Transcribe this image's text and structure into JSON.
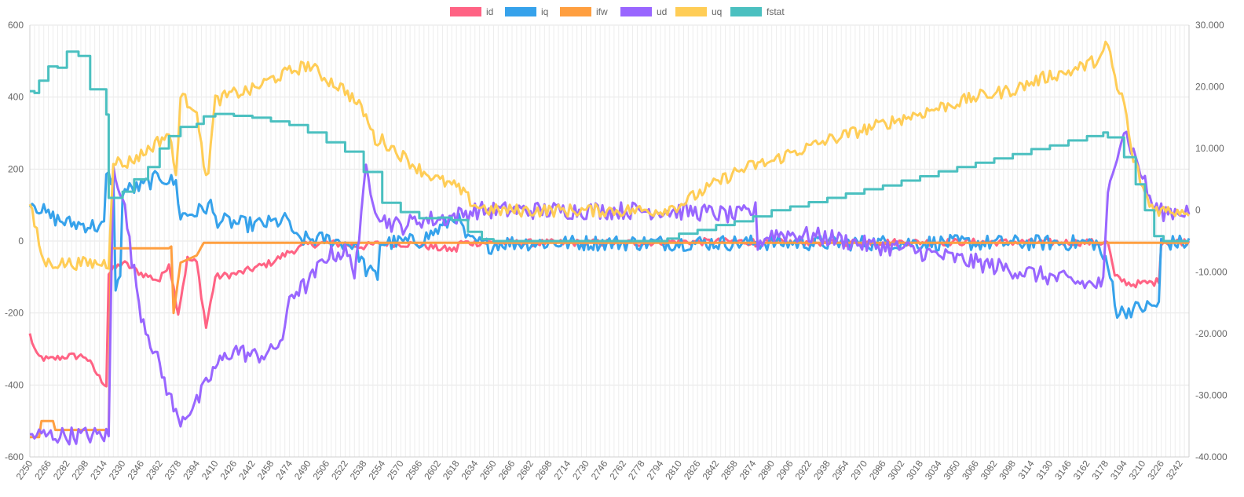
{
  "chart_data": {
    "type": "line",
    "x_start": 2250,
    "x_end": 3250,
    "x_ticks": [
      2250,
      2266,
      2282,
      2298,
      2314,
      2330,
      2346,
      2362,
      2378,
      2394,
      2410,
      2426,
      2442,
      2458,
      2474,
      2490,
      2506,
      2522,
      2538,
      2554,
      2570,
      2586,
      2602,
      2618,
      2634,
      2650,
      2666,
      2682,
      2698,
      2714,
      2730,
      2746,
      2762,
      2778,
      2794,
      2810,
      2826,
      2842,
      2858,
      2874,
      2890,
      2906,
      2922,
      2938,
      2954,
      2970,
      2986,
      3002,
      3018,
      3034,
      3050,
      3066,
      3082,
      3098,
      3114,
      3130,
      3146,
      3162,
      3178,
      3194,
      3210,
      3226,
      3242
    ],
    "y_left": {
      "min": -600,
      "max": 600,
      "ticks": [
        "600",
        "400",
        "200",
        "0",
        "-200",
        "-400",
        "-600"
      ]
    },
    "y_right": {
      "min": -40000,
      "max": 30000,
      "ticks": [
        "30.000",
        "20.000",
        "10.000",
        "0",
        "-10.000",
        "-20.000",
        "-30.000",
        "-40.000"
      ]
    },
    "grid": true,
    "legend_position": "top",
    "series": [
      {
        "name": "id",
        "color": "#ff6384",
        "axis": "left",
        "noise": 10,
        "points": [
          [
            2250,
            -260
          ],
          [
            2256,
            -320
          ],
          [
            2266,
            -330
          ],
          [
            2282,
            -320
          ],
          [
            2298,
            -320
          ],
          [
            2310,
            -380
          ],
          [
            2316,
            -400
          ],
          [
            2318,
            -90
          ],
          [
            2330,
            -60
          ],
          [
            2346,
            -90
          ],
          [
            2362,
            -110
          ],
          [
            2370,
            -60
          ],
          [
            2378,
            -200
          ],
          [
            2386,
            -50
          ],
          [
            2394,
            -60
          ],
          [
            2402,
            -240
          ],
          [
            2410,
            -100
          ],
          [
            2430,
            -90
          ],
          [
            2458,
            -60
          ],
          [
            2474,
            -30
          ],
          [
            2490,
            -10
          ],
          [
            2506,
            -5
          ],
          [
            2538,
            -15
          ],
          [
            2554,
            -5
          ],
          [
            2586,
            -10
          ],
          [
            2602,
            -20
          ],
          [
            2618,
            -25
          ],
          [
            2620,
            -5
          ],
          [
            2650,
            -5
          ],
          [
            2778,
            -5
          ],
          [
            2794,
            -2
          ],
          [
            2874,
            -2
          ],
          [
            2876,
            -15
          ],
          [
            2880,
            -5
          ],
          [
            2900,
            -4
          ],
          [
            2960,
            -4
          ],
          [
            3000,
            -3
          ],
          [
            3100,
            -3
          ],
          [
            3180,
            -4
          ],
          [
            3186,
            -100
          ],
          [
            3200,
            -120
          ],
          [
            3220,
            -115
          ],
          [
            3224,
            -110
          ],
          [
            3226,
            -2
          ],
          [
            3250,
            -2
          ]
        ]
      },
      {
        "name": "iq",
        "color": "#36a2eb",
        "axis": "left",
        "noise": 22,
        "points": [
          [
            2250,
            115
          ],
          [
            2266,
            70
          ],
          [
            2282,
            50
          ],
          [
            2298,
            45
          ],
          [
            2310,
            40
          ],
          [
            2314,
            40
          ],
          [
            2316,
            180
          ],
          [
            2322,
            170
          ],
          [
            2324,
            -120
          ],
          [
            2328,
            -110
          ],
          [
            2330,
            140
          ],
          [
            2346,
            150
          ],
          [
            2362,
            180
          ],
          [
            2376,
            160
          ],
          [
            2380,
            70
          ],
          [
            2394,
            80
          ],
          [
            2406,
            100
          ],
          [
            2410,
            60
          ],
          [
            2426,
            50
          ],
          [
            2442,
            45
          ],
          [
            2458,
            50
          ],
          [
            2474,
            60
          ],
          [
            2478,
            5
          ],
          [
            2506,
            5
          ],
          [
            2530,
            -10
          ],
          [
            2540,
            -80
          ],
          [
            2550,
            -100
          ],
          [
            2552,
            -5
          ],
          [
            2560,
            -5
          ],
          [
            2586,
            0
          ],
          [
            2602,
            30
          ],
          [
            2618,
            70
          ],
          [
            2628,
            0
          ],
          [
            2650,
            -15
          ],
          [
            2652,
            -5
          ],
          [
            2876,
            -5
          ],
          [
            3170,
            -5
          ],
          [
            3178,
            -60
          ],
          [
            3184,
            -120
          ],
          [
            3188,
            -200
          ],
          [
            3200,
            -190
          ],
          [
            3220,
            -180
          ],
          [
            3224,
            -175
          ],
          [
            3226,
            -5
          ],
          [
            3250,
            -5
          ]
        ]
      },
      {
        "name": "ifw",
        "color": "#ff9f40",
        "axis": "left",
        "noise": 0,
        "points": [
          [
            2250,
            -545
          ],
          [
            2258,
            -545
          ],
          [
            2260,
            -500
          ],
          [
            2270,
            -500
          ],
          [
            2272,
            -525
          ],
          [
            2318,
            -525
          ],
          [
            2320,
            -20
          ],
          [
            2370,
            -20
          ],
          [
            2372,
            -15
          ],
          [
            2374,
            -200
          ],
          [
            2380,
            -60
          ],
          [
            2394,
            -40
          ],
          [
            2400,
            -5
          ],
          [
            3250,
            -5
          ]
        ]
      },
      {
        "name": "ud",
        "color": "#9966ff",
        "axis": "left",
        "noise": 25,
        "points": [
          [
            2250,
            -540
          ],
          [
            2258,
            -540
          ],
          [
            2300,
            -540
          ],
          [
            2318,
            -540
          ],
          [
            2322,
            200
          ],
          [
            2330,
            130
          ],
          [
            2338,
            -50
          ],
          [
            2346,
            -200
          ],
          [
            2362,
            -350
          ],
          [
            2378,
            -500
          ],
          [
            2394,
            -450
          ],
          [
            2410,
            -350
          ],
          [
            2426,
            -300
          ],
          [
            2442,
            -320
          ],
          [
            2458,
            -310
          ],
          [
            2470,
            -260
          ],
          [
            2474,
            -150
          ],
          [
            2490,
            -120
          ],
          [
            2506,
            -40
          ],
          [
            2522,
            -30
          ],
          [
            2530,
            -80
          ],
          [
            2536,
            60
          ],
          [
            2540,
            200
          ],
          [
            2548,
            100
          ],
          [
            2554,
            60
          ],
          [
            2570,
            40
          ],
          [
            2586,
            60
          ],
          [
            2602,
            60
          ],
          [
            2618,
            70
          ],
          [
            2634,
            85
          ],
          [
            2650,
            85
          ],
          [
            2700,
            85
          ],
          [
            2778,
            85
          ],
          [
            2794,
            85
          ],
          [
            2830,
            80
          ],
          [
            2860,
            70
          ],
          [
            2876,
            85
          ],
          [
            2878,
            -5
          ],
          [
            2890,
            20
          ],
          [
            2906,
            20
          ],
          [
            2938,
            10
          ],
          [
            2970,
            -10
          ],
          [
            3002,
            -20
          ],
          [
            3034,
            -40
          ],
          [
            3066,
            -60
          ],
          [
            3098,
            -80
          ],
          [
            3130,
            -100
          ],
          [
            3162,
            -120
          ],
          [
            3176,
            -120
          ],
          [
            3180,
            120
          ],
          [
            3186,
            230
          ],
          [
            3194,
            310
          ],
          [
            3210,
            180
          ],
          [
            3218,
            100
          ],
          [
            3226,
            80
          ],
          [
            3250,
            85
          ]
        ]
      },
      {
        "name": "uq",
        "color": "#ffcd56",
        "axis": "left",
        "noise": 18,
        "points": [
          [
            2250,
            100
          ],
          [
            2256,
            20
          ],
          [
            2262,
            -60
          ],
          [
            2280,
            -62
          ],
          [
            2318,
            -62
          ],
          [
            2322,
            230
          ],
          [
            2330,
            210
          ],
          [
            2346,
            240
          ],
          [
            2362,
            280
          ],
          [
            2370,
            300
          ],
          [
            2376,
            180
          ],
          [
            2380,
            400
          ],
          [
            2394,
            370
          ],
          [
            2400,
            200
          ],
          [
            2404,
            200
          ],
          [
            2410,
            390
          ],
          [
            2426,
            410
          ],
          [
            2442,
            420
          ],
          [
            2458,
            450
          ],
          [
            2474,
            470
          ],
          [
            2490,
            490
          ],
          [
            2506,
            450
          ],
          [
            2522,
            420
          ],
          [
            2538,
            360
          ],
          [
            2548,
            280
          ],
          [
            2554,
            280
          ],
          [
            2570,
            240
          ],
          [
            2586,
            200
          ],
          [
            2602,
            170
          ],
          [
            2618,
            150
          ],
          [
            2634,
            100
          ],
          [
            2648,
            85
          ],
          [
            2778,
            85
          ],
          [
            2794,
            85
          ],
          [
            2810,
            100
          ],
          [
            2826,
            130
          ],
          [
            2842,
            160
          ],
          [
            2858,
            190
          ],
          [
            2874,
            210
          ],
          [
            2890,
            220
          ],
          [
            2906,
            245
          ],
          [
            2922,
            260
          ],
          [
            2938,
            280
          ],
          [
            2954,
            295
          ],
          [
            2970,
            310
          ],
          [
            2986,
            325
          ],
          [
            3002,
            340
          ],
          [
            3018,
            355
          ],
          [
            3034,
            370
          ],
          [
            3050,
            385
          ],
          [
            3066,
            400
          ],
          [
            3082,
            410
          ],
          [
            3098,
            420
          ],
          [
            3114,
            440
          ],
          [
            3130,
            460
          ],
          [
            3146,
            470
          ],
          [
            3162,
            490
          ],
          [
            3174,
            510
          ],
          [
            3178,
            540
          ],
          [
            3182,
            520
          ],
          [
            3188,
            420
          ],
          [
            3194,
            390
          ],
          [
            3200,
            250
          ],
          [
            3210,
            150
          ],
          [
            3216,
            100
          ],
          [
            3226,
            85
          ],
          [
            3250,
            85
          ]
        ]
      },
      {
        "name": "fstat",
        "color": "#4bc0c0",
        "axis": "right",
        "noise": 0,
        "step": true,
        "points": [
          [
            2250,
            19300
          ],
          [
            2254,
            19000
          ],
          [
            2258,
            21000
          ],
          [
            2266,
            23300
          ],
          [
            2274,
            23100
          ],
          [
            2282,
            25700
          ],
          [
            2292,
            25000
          ],
          [
            2302,
            19600
          ],
          [
            2316,
            15500
          ],
          [
            2318,
            2000
          ],
          [
            2330,
            3000
          ],
          [
            2340,
            5000
          ],
          [
            2352,
            7000
          ],
          [
            2362,
            10000
          ],
          [
            2370,
            12000
          ],
          [
            2380,
            13500
          ],
          [
            2394,
            14000
          ],
          [
            2400,
            15200
          ],
          [
            2410,
            15600
          ],
          [
            2426,
            15300
          ],
          [
            2442,
            15000
          ],
          [
            2458,
            14400
          ],
          [
            2474,
            13800
          ],
          [
            2490,
            12600
          ],
          [
            2506,
            11000
          ],
          [
            2522,
            9500
          ],
          [
            2538,
            6200
          ],
          [
            2554,
            1200
          ],
          [
            2570,
            -300
          ],
          [
            2586,
            -1300
          ],
          [
            2602,
            -1200
          ],
          [
            2614,
            -1600
          ],
          [
            2628,
            -3500
          ],
          [
            2640,
            -4700
          ],
          [
            2650,
            -5000
          ],
          [
            2794,
            -5000
          ],
          [
            2800,
            -4600
          ],
          [
            2810,
            -3800
          ],
          [
            2826,
            -3200
          ],
          [
            2842,
            -2400
          ],
          [
            2858,
            -1800
          ],
          [
            2874,
            -1000
          ],
          [
            2890,
            0
          ],
          [
            2906,
            600
          ],
          [
            2922,
            1300
          ],
          [
            2938,
            2000
          ],
          [
            2954,
            2700
          ],
          [
            2970,
            3400
          ],
          [
            2986,
            4000
          ],
          [
            3002,
            4800
          ],
          [
            3018,
            5500
          ],
          [
            3034,
            6300
          ],
          [
            3050,
            7000
          ],
          [
            3066,
            7700
          ],
          [
            3082,
            8400
          ],
          [
            3098,
            9100
          ],
          [
            3114,
            9900
          ],
          [
            3130,
            10500
          ],
          [
            3146,
            11300
          ],
          [
            3162,
            12000
          ],
          [
            3176,
            12600
          ],
          [
            3180,
            11800
          ],
          [
            3194,
            8600
          ],
          [
            3204,
            4200
          ],
          [
            3212,
            0
          ],
          [
            3220,
            -4200
          ],
          [
            3228,
            -5000
          ],
          [
            3250,
            -5000
          ]
        ]
      }
    ]
  }
}
